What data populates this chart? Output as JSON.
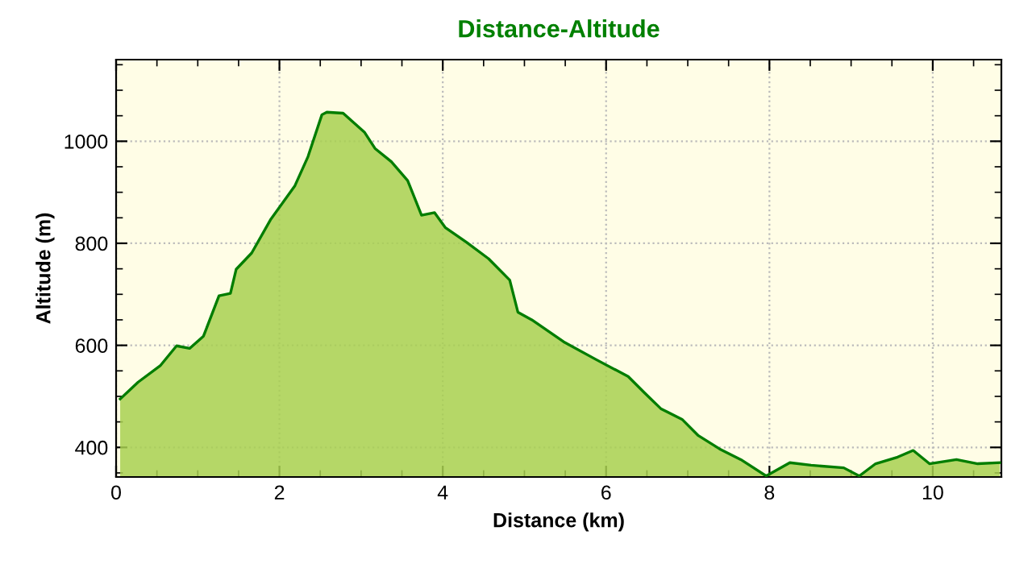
{
  "chart_data": {
    "type": "area",
    "title": "Distance-Altitude",
    "xlabel": "Distance (km)",
    "ylabel": "Altitude (m)",
    "xlim": [
      0,
      10.84
    ],
    "ylim": [
      342,
      1160
    ],
    "xticks": [
      0,
      2,
      4,
      6,
      8,
      10
    ],
    "yticks": [
      400,
      600,
      800,
      1000
    ],
    "grid": true,
    "line_style": "solid",
    "marker": "none",
    "series": [
      {
        "color": "#a8d050",
        "x": [
          0.05,
          0.27,
          0.54,
          0.74,
          0.9,
          1.07,
          1.26,
          1.4,
          1.47,
          1.66,
          1.89,
          2.19,
          2.35,
          2.52,
          2.58,
          2.78,
          3.04,
          3.17,
          3.37,
          3.57,
          3.74,
          3.9,
          4.03,
          4.29,
          4.56,
          4.82,
          4.92,
          5.09,
          5.48,
          5.88,
          6.27,
          6.47,
          6.67,
          6.93,
          7.13,
          7.39,
          7.65,
          7.96,
          8.25,
          8.51,
          8.91,
          9.1,
          9.3,
          9.57,
          9.76,
          9.96,
          10.29,
          10.55,
          10.82
        ],
        "values": [
          495,
          528,
          560,
          599,
          594,
          618,
          697,
          702,
          749,
          781,
          846,
          913,
          970,
          1052,
          1057,
          1055,
          1018,
          986,
          960,
          923,
          855,
          860,
          831,
          802,
          770,
          728,
          665,
          650,
          607,
          572,
          539,
          507,
          476,
          455,
          423,
          397,
          376,
          344,
          370,
          365,
          360,
          344,
          368,
          381,
          394,
          368,
          376,
          368,
          370
        ]
      }
    ]
  }
}
